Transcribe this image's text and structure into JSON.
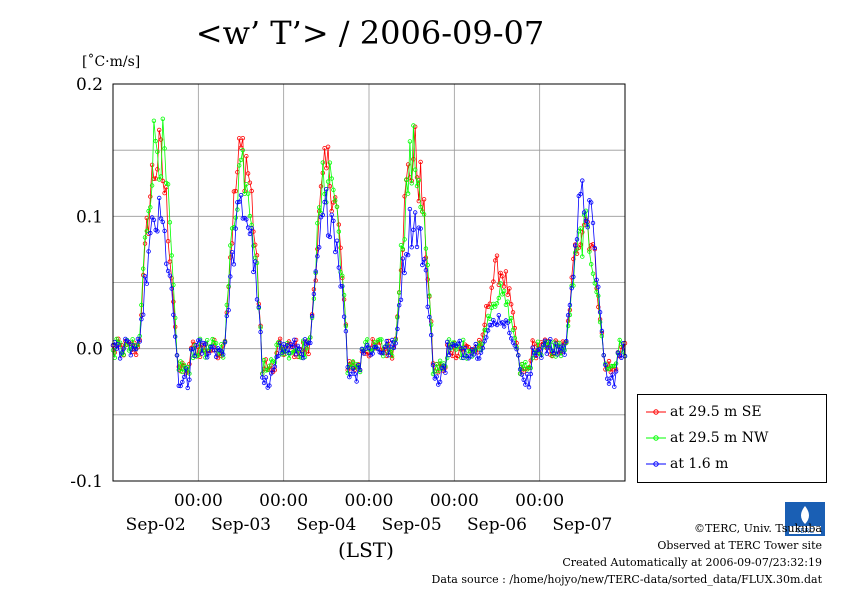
{
  "title": "<w’ T’> / 2006-09-07",
  "y_unit": "[˚C·m/s]",
  "x_axis_label": "(LST)",
  "legend": [
    {
      "label": "at 29.5 m SE",
      "color": "#ff0000"
    },
    {
      "label": "at 29.5 m NW",
      "color": "#00ff00"
    },
    {
      "label": "at 1.6 m",
      "color": "#0000ff"
    }
  ],
  "footer": {
    "copyright": "©TERC, Univ. Tsukuba",
    "site": "Observed at TERC Tower site",
    "created": "Created Automatically at 2006-09-07/23:32:19",
    "source": "Data source : /home/hojyo/new/TERC-data/sorted_data/FLUX.30m.dat"
  },
  "logo_text": "TERC",
  "chart_data": {
    "type": "line",
    "title": "<w’ T’> / 2006-09-07",
    "xlabel": "(LST)",
    "ylabel": "[˚C·m/s]",
    "ylim": [
      -0.1,
      0.2
    ],
    "xlim_days": [
      1.0,
      7.0
    ],
    "y_ticks": [
      -0.1,
      0.0,
      0.1,
      0.2
    ],
    "y_tick_labels": [
      "-0.1",
      "0.0",
      "0.1",
      "0.2"
    ],
    "x_ticks": [
      "00:00",
      "00:00",
      "00:00",
      "00:00",
      "00:00"
    ],
    "x_day_labels": [
      "Sep-02",
      "Sep-03",
      "Sep-04",
      "Sep-05",
      "Sep-06",
      "Sep-07"
    ],
    "grid": true,
    "legend_position": "right",
    "series": [
      {
        "name": "at 29.5 m SE",
        "color": "#ff0000",
        "peaks": [
          0.16,
          0.165,
          0.15,
          0.162,
          0.07,
          0.113
        ],
        "night_min": -0.02
      },
      {
        "name": "at 29.5 m NW",
        "color": "#00ff00",
        "peaks": [
          0.178,
          0.158,
          0.15,
          0.16,
          0.05,
          0.1
        ],
        "night_min": -0.02
      },
      {
        "name": "at 1.6 m",
        "color": "#0000ff",
        "peaks": [
          0.11,
          0.12,
          0.12,
          0.11,
          0.03,
          0.125
        ],
        "night_min": -0.03
      }
    ]
  }
}
